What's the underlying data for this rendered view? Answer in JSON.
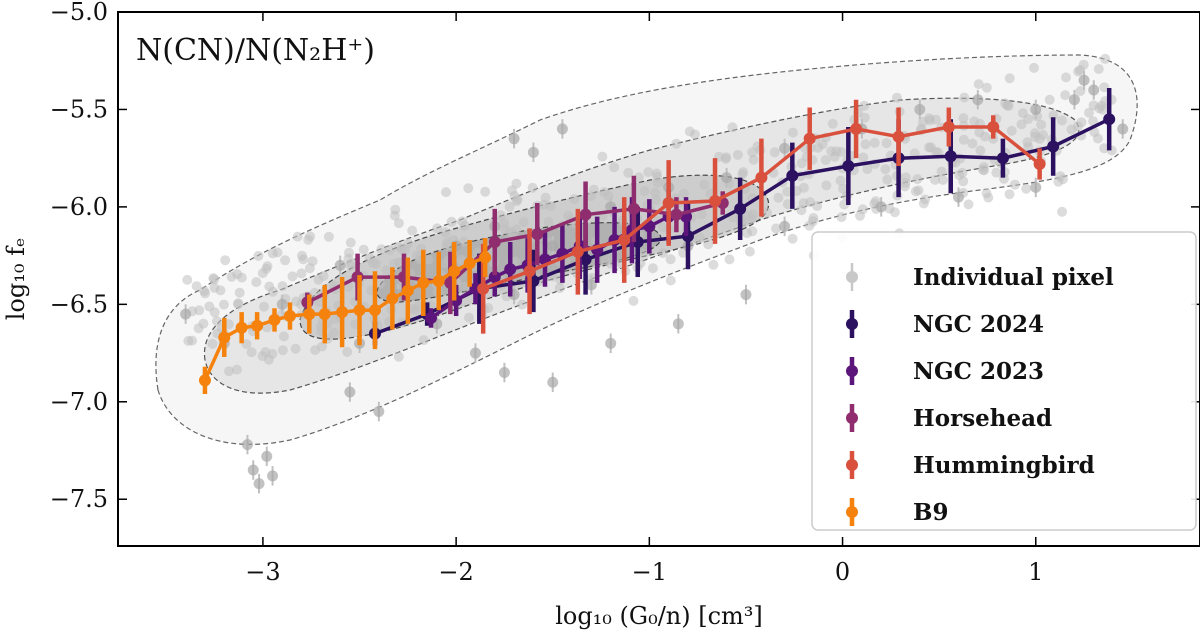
{
  "chart_data": {
    "type": "scatter",
    "title": "",
    "annotation": "N(CN)/N(N₂H⁺)",
    "xlabel": "log₁₀ (G₀/n) [cm³]",
    "ylabel": "log₁₀ fₑ",
    "xlim": [
      -3.75,
      1.85
    ],
    "ylim": [
      -7.74,
      -5.0
    ],
    "xticks": [
      -3,
      -2,
      -1,
      0,
      1
    ],
    "yticks": [
      -5.0,
      -5.5,
      -6.0,
      -6.5,
      -7.0,
      -7.5
    ],
    "xtick_labels": [
      "−3",
      "−2",
      "−1",
      "0",
      "1"
    ],
    "ytick_labels": [
      "−5.0",
      "−5.5",
      "−6.0",
      "−6.5",
      "−7.0",
      "−7.5"
    ],
    "legend_position": "lower-right",
    "series": [
      {
        "name": "Individual pixel",
        "color": "#c0c0c0",
        "kind": "cloud",
        "points": [
          [
            -3.05,
            -7.35
          ],
          [
            -3.02,
            -7.42
          ],
          [
            -2.98,
            -7.28
          ],
          [
            -3.08,
            -7.22
          ],
          [
            -2.95,
            -7.38
          ],
          [
            -2.55,
            -6.95
          ],
          [
            -2.4,
            -7.05
          ],
          [
            -1.9,
            -6.75
          ],
          [
            -1.75,
            -6.85
          ],
          [
            -1.5,
            -6.9
          ],
          [
            -1.2,
            -6.7
          ],
          [
            -0.85,
            -6.6
          ],
          [
            -0.5,
            -6.45
          ],
          [
            -1.7,
            -5.65
          ],
          [
            -1.6,
            -5.72
          ],
          [
            -1.45,
            -5.6
          ],
          [
            1.25,
            -5.35
          ],
          [
            1.3,
            -5.4
          ],
          [
            1.45,
            -5.6
          ],
          [
            1.2,
            -5.45
          ],
          [
            -3.4,
            -6.55
          ],
          [
            -3.2,
            -6.7
          ],
          [
            -2.9,
            -6.5
          ],
          [
            -2.6,
            -6.3
          ],
          [
            -2.3,
            -6.45
          ],
          [
            -2.0,
            -6.2
          ],
          [
            -1.8,
            -6.1
          ],
          [
            -1.5,
            -6.2
          ],
          [
            -1.2,
            -6.0
          ],
          [
            -0.9,
            -5.9
          ],
          [
            -0.6,
            -5.85
          ],
          [
            -0.3,
            -5.7
          ],
          [
            0.1,
            -5.6
          ],
          [
            0.4,
            -5.5
          ],
          [
            0.7,
            -5.45
          ],
          [
            1.0,
            -5.5
          ],
          [
            -2.5,
            -6.7
          ],
          [
            -2.1,
            -6.6
          ],
          [
            -1.7,
            -6.45
          ],
          [
            -1.3,
            -6.4
          ],
          [
            -0.8,
            -6.2
          ],
          [
            -0.3,
            -6.1
          ],
          [
            0.2,
            -6.0
          ],
          [
            0.6,
            -5.95
          ],
          [
            1.0,
            -5.9
          ]
        ]
      },
      {
        "name": "NGC 2024",
        "color": "#2b1160",
        "x": [
          -2.42,
          -2.15,
          -1.88,
          -1.6,
          -1.33,
          -1.06,
          -0.8,
          -0.53,
          -0.26,
          0.03,
          0.29,
          0.56,
          0.83,
          1.09,
          1.38
        ],
        "y": [
          -6.65,
          -6.55,
          -6.42,
          -6.38,
          -6.27,
          -6.18,
          -6.15,
          -6.01,
          -5.84,
          -5.79,
          -5.75,
          -5.74,
          -5.75,
          -5.69,
          -5.55
        ],
        "err": [
          0.06,
          0.06,
          0.18,
          0.16,
          0.18,
          0.18,
          0.17,
          0.16,
          0.17,
          0.2,
          0.2,
          0.19,
          0.1,
          0.15,
          0.16
        ]
      },
      {
        "name": "NGC 2023",
        "color": "#5c157a",
        "x": [
          -2.13,
          -2.0,
          -1.9,
          -1.8,
          -1.72,
          -1.63,
          -1.54,
          -1.45,
          -1.36,
          -1.27,
          -1.18,
          -1.09,
          -1.0,
          -0.9,
          -0.81
        ],
        "y": [
          -6.57,
          -6.48,
          -6.42,
          -6.36,
          -6.32,
          -6.3,
          -6.27,
          -6.24,
          -6.2,
          -6.22,
          -6.17,
          -6.12,
          -6.1,
          -6.05,
          -6.05
        ],
        "err": [
          0.05,
          0.08,
          0.08,
          0.1,
          0.14,
          0.14,
          0.14,
          0.15,
          0.17,
          0.17,
          0.17,
          0.17,
          0.14,
          0.14,
          0.1
        ]
      },
      {
        "name": "Horsehead",
        "color": "#8f2d6e",
        "x": [
          -2.77,
          -2.51,
          -2.27,
          -2.03,
          -1.8,
          -1.58,
          -1.33,
          -1.08,
          -0.86,
          -0.62
        ],
        "y": [
          -6.49,
          -6.36,
          -6.36,
          -6.39,
          -6.18,
          -6.14,
          -6.04,
          -6.01,
          -6.04,
          -5.98
        ],
        "err": [
          0.05,
          0.12,
          0.12,
          0.16,
          0.17,
          0.16,
          0.17,
          0.17,
          0.09,
          0.06
        ]
      },
      {
        "name": "Hummingbird",
        "color": "#d9503d",
        "x": [
          -1.86,
          -1.62,
          -1.37,
          -1.13,
          -0.9,
          -0.66,
          -0.42,
          -0.17,
          0.07,
          0.29,
          0.55,
          0.78,
          1.02
        ],
        "y": [
          -6.42,
          -6.33,
          -6.23,
          -6.17,
          -5.98,
          -5.97,
          -5.85,
          -5.65,
          -5.6,
          -5.64,
          -5.59,
          -5.59,
          -5.78
        ],
        "err": [
          0.23,
          0.22,
          0.22,
          0.22,
          0.22,
          0.22,
          0.2,
          0.16,
          0.15,
          0.15,
          0.1,
          0.06,
          0.08
        ]
      },
      {
        "name": "B9",
        "color": "#f5820d",
        "x": [
          -3.3,
          -3.2,
          -3.11,
          -3.03,
          -2.94,
          -2.86,
          -2.76,
          -2.68,
          -2.59,
          -2.5,
          -2.42,
          -2.33,
          -2.25,
          -2.17,
          -2.09,
          -2.01,
          -1.93,
          -1.85
        ],
        "y": [
          -6.89,
          -6.67,
          -6.62,
          -6.61,
          -6.58,
          -6.56,
          -6.55,
          -6.55,
          -6.54,
          -6.53,
          -6.53,
          -6.47,
          -6.43,
          -6.39,
          -6.38,
          -6.33,
          -6.29,
          -6.26
        ],
        "err": [
          0.07,
          0.1,
          0.08,
          0.07,
          0.06,
          0.07,
          0.1,
          0.15,
          0.18,
          0.18,
          0.2,
          0.16,
          0.17,
          0.17,
          0.15,
          0.15,
          0.12,
          0.1
        ]
      }
    ]
  }
}
